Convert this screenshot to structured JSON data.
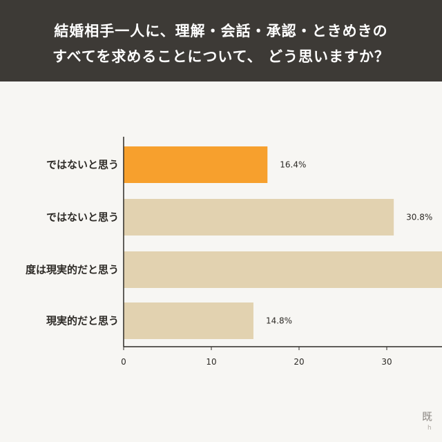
{
  "header": {
    "title_line1": "結婚相手一人に、理解・会話・承認・ときめきの",
    "title_line2": "すべてを求めることについて、 どう思いますか？"
  },
  "watermark": {
    "text": "既",
    "sub": "h"
  },
  "chart_data": {
    "type": "bar",
    "orientation": "horizontal",
    "categories": [
      "ではないと思う",
      "ではないと思う",
      "度は現実的だと思う",
      "現実的だと思う"
    ],
    "values": [
      16.4,
      30.8,
      38.0,
      14.8
    ],
    "value_labels": [
      "16.4%",
      "30.8%",
      "",
      "14.8%"
    ],
    "bar_colors": [
      "#f7a02d",
      "#e2d2b0",
      "#e2d2b0",
      "#e2d2b0"
    ],
    "xticks": [
      0,
      10,
      20,
      30
    ],
    "xlim": [
      0,
      36
    ],
    "grid": false,
    "title": "結婚相手一人に、理解・会話・承認・ときめきのすべてを求めることについて、 どう思いますか？",
    "xlabel": "",
    "ylabel": ""
  }
}
